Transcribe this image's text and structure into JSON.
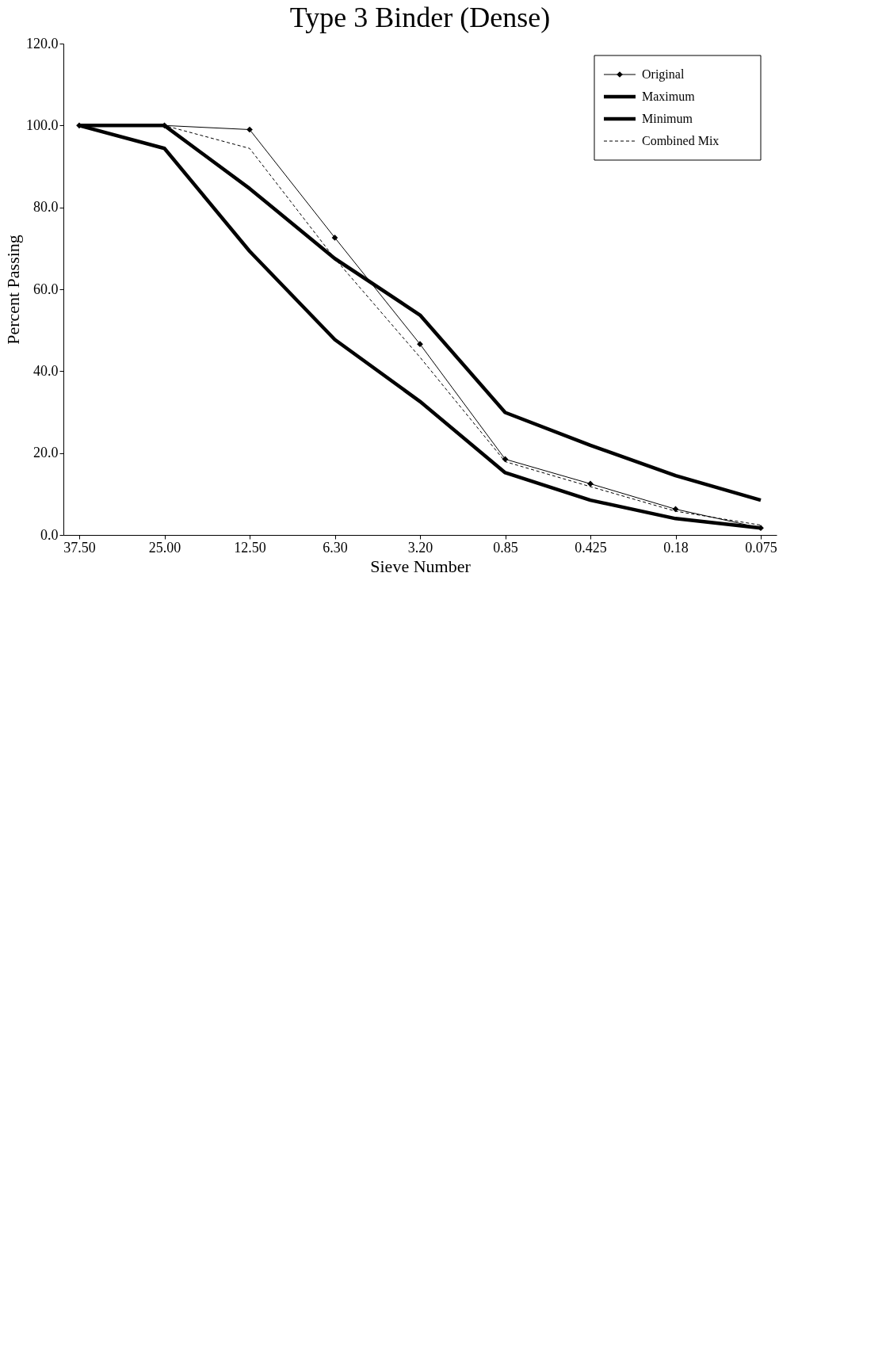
{
  "chart_data": {
    "type": "line",
    "title": "Type 3 Binder (Dense)",
    "xlabel": "Sieve Number",
    "ylabel": "Percent Passing",
    "categories": [
      "37.50",
      "25.00",
      "12.50",
      "6.30",
      "3.20",
      "0.85",
      "0.425",
      "0.18",
      "0.075"
    ],
    "series": [
      {
        "name": "Original",
        "color": "#000000",
        "marker": "diamond",
        "line_style": "solid",
        "values": [
          100,
          100,
          99,
          72.6,
          46.6,
          18.5,
          12.5,
          6.3,
          1.7
        ]
      },
      {
        "name": "Maximum",
        "color": "#000000",
        "marker": "none",
        "line_style": "solid",
        "values": [
          100,
          100,
          84.6,
          67.5,
          53.7,
          29.9,
          21.9,
          14.5,
          8.5
        ]
      },
      {
        "name": "Minimum",
        "color": "#000000",
        "marker": "none",
        "line_style": "solid",
        "values": [
          100,
          94.4,
          69.3,
          47.7,
          32.6,
          15.2,
          8.5,
          4,
          1.7
        ]
      },
      {
        "name": "Combined Mix",
        "color": "#000000",
        "marker": "none",
        "line_style": "dashed",
        "values": [
          100,
          100,
          94.4,
          67.5,
          43.4,
          17.9,
          11.8,
          5.8,
          2.4
        ]
      }
    ],
    "ylim": [
      0,
      120
    ],
    "yticks": [
      {
        "value": 0,
        "label": "0.0"
      },
      {
        "value": 20,
        "label": "20.0"
      },
      {
        "value": 40,
        "label": "40.0"
      },
      {
        "value": 60,
        "label": "60.0"
      },
      {
        "value": 80,
        "label": "80.0"
      },
      {
        "value": 100,
        "label": "100.0"
      },
      {
        "value": 120,
        "label": "120.0"
      }
    ],
    "grid": false,
    "legend": "top right"
  }
}
